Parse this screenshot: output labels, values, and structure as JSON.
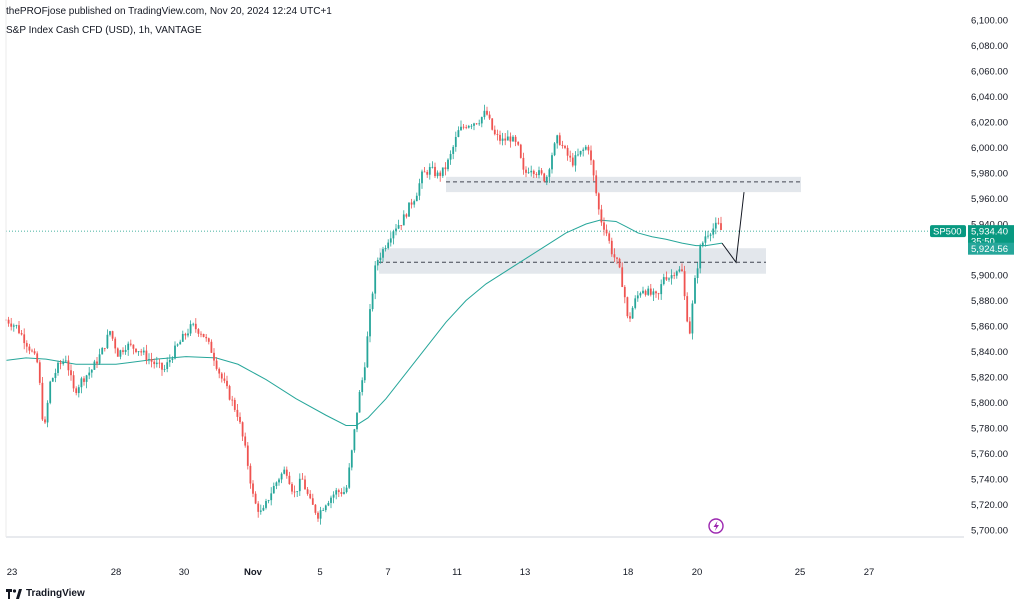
{
  "header": {
    "publisher": "thePROFjose published on TradingView.com, Nov 20, 2024 12:24 UTC+1",
    "symbol": "S&P Index Cash CFD (USD), 1h, VANTAGE"
  },
  "footer": {
    "brand": "TradingView"
  },
  "colors": {
    "up": "#26a69a",
    "down": "#ef5350",
    "ma": "#26a69a",
    "zone": "#e3e7ec",
    "last_price": "#089981",
    "grid": "#ebebeb"
  },
  "chart_data": {
    "type": "candlestick",
    "title": "S&P Index Cash CFD (USD), 1h, VANTAGE",
    "y_axis": {
      "min": 5695,
      "max": 6100,
      "step": 20,
      "ticks": [
        "6,100.00",
        "6,080.00",
        "6,060.00",
        "6,040.00",
        "6,020.00",
        "6,000.00",
        "5,980.00",
        "5,960.00",
        "5,940.00",
        "5,920.00",
        "5,900.00",
        "5,880.00",
        "5,860.00",
        "5,840.00",
        "5,820.00",
        "5,800.00",
        "5,780.00",
        "5,760.00",
        "5,740.00",
        "5,720.00",
        "5,700.00"
      ]
    },
    "x_axis": {
      "labels": [
        "23",
        "28",
        "30",
        "Nov",
        "5",
        "7",
        "11",
        "13",
        "18",
        "20",
        "25",
        "27"
      ],
      "bold": [
        "Nov"
      ]
    },
    "price_path": [
      [
        0,
        5865
      ],
      [
        10,
        5860
      ],
      [
        22,
        5845
      ],
      [
        32,
        5830
      ],
      [
        38,
        5775
      ],
      [
        44,
        5815
      ],
      [
        52,
        5828
      ],
      [
        60,
        5835
      ],
      [
        68,
        5808
      ],
      [
        76,
        5818
      ],
      [
        86,
        5826
      ],
      [
        96,
        5840
      ],
      [
        104,
        5856
      ],
      [
        112,
        5838
      ],
      [
        120,
        5845
      ],
      [
        132,
        5842
      ],
      [
        146,
        5832
      ],
      [
        158,
        5825
      ],
      [
        168,
        5840
      ],
      [
        178,
        5852
      ],
      [
        186,
        5860
      ],
      [
        196,
        5855
      ],
      [
        206,
        5840
      ],
      [
        214,
        5822
      ],
      [
        222,
        5808
      ],
      [
        232,
        5790
      ],
      [
        240,
        5760
      ],
      [
        248,
        5722
      ],
      [
        256,
        5712
      ],
      [
        264,
        5728
      ],
      [
        272,
        5740
      ],
      [
        280,
        5748
      ],
      [
        288,
        5728
      ],
      [
        296,
        5740
      ],
      [
        304,
        5722
      ],
      [
        312,
        5712
      ],
      [
        320,
        5722
      ],
      [
        330,
        5730
      ],
      [
        340,
        5730
      ],
      [
        346,
        5762
      ],
      [
        352,
        5800
      ],
      [
        358,
        5825
      ],
      [
        364,
        5870
      ],
      [
        370,
        5910
      ],
      [
        376,
        5918
      ],
      [
        382,
        5928
      ],
      [
        388,
        5937
      ],
      [
        396,
        5942
      ],
      [
        404,
        5955
      ],
      [
        410,
        5963
      ],
      [
        416,
        5978
      ],
      [
        424,
        5983
      ],
      [
        432,
        5978
      ],
      [
        438,
        5982
      ],
      [
        444,
        5992
      ],
      [
        452,
        6012
      ],
      [
        460,
        6018
      ],
      [
        468,
        6020
      ],
      [
        474,
        6022
      ],
      [
        480,
        6028
      ],
      [
        488,
        6010
      ],
      [
        496,
        6005
      ],
      [
        504,
        6008
      ],
      [
        512,
        6000
      ],
      [
        518,
        5978
      ],
      [
        524,
        5985
      ],
      [
        532,
        5980
      ],
      [
        540,
        5975
      ],
      [
        546,
        5995
      ],
      [
        552,
        6008
      ],
      [
        558,
        5998
      ],
      [
        566,
        5988
      ],
      [
        574,
        5995
      ],
      [
        582,
        6002
      ],
      [
        588,
        5975
      ],
      [
        594,
        5945
      ],
      [
        600,
        5935
      ],
      [
        606,
        5918
      ],
      [
        612,
        5908
      ],
      [
        618,
        5888
      ],
      [
        622,
        5862
      ],
      [
        628,
        5878
      ],
      [
        636,
        5890
      ],
      [
        644,
        5885
      ],
      [
        652,
        5882
      ],
      [
        658,
        5900
      ],
      [
        664,
        5898
      ],
      [
        670,
        5905
      ],
      [
        676,
        5902
      ],
      [
        680,
        5872
      ],
      [
        684,
        5855
      ],
      [
        688,
        5890
      ],
      [
        694,
        5920
      ],
      [
        700,
        5932
      ],
      [
        706,
        5936
      ],
      [
        712,
        5939
      ],
      [
        716,
        5934
      ]
    ],
    "moving_average": [
      [
        0,
        5833
      ],
      [
        20,
        5835
      ],
      [
        40,
        5834
      ],
      [
        70,
        5830
      ],
      [
        110,
        5830
      ],
      [
        150,
        5834
      ],
      [
        180,
        5836
      ],
      [
        210,
        5835
      ],
      [
        232,
        5830
      ],
      [
        260,
        5818
      ],
      [
        290,
        5803
      ],
      [
        320,
        5790
      ],
      [
        340,
        5782
      ],
      [
        350,
        5782
      ],
      [
        362,
        5788
      ],
      [
        380,
        5803
      ],
      [
        400,
        5823
      ],
      [
        420,
        5843
      ],
      [
        440,
        5863
      ],
      [
        460,
        5880
      ],
      [
        480,
        5893
      ],
      [
        500,
        5903
      ],
      [
        520,
        5913
      ],
      [
        540,
        5923
      ],
      [
        560,
        5933
      ],
      [
        580,
        5940
      ],
      [
        594,
        5943
      ],
      [
        610,
        5942
      ],
      [
        620,
        5938
      ],
      [
        632,
        5933
      ],
      [
        646,
        5930
      ],
      [
        660,
        5928
      ],
      [
        676,
        5925
      ],
      [
        690,
        5923
      ],
      [
        700,
        5923
      ],
      [
        716,
        5925
      ]
    ],
    "zones": [
      {
        "x0": 440,
        "x1": 795,
        "y_low": 5965,
        "y_high": 5977,
        "dashed_level": 5973
      },
      {
        "x0": 373,
        "x1": 760,
        "y_low": 5901,
        "y_high": 5921,
        "dashed_level": 5910
      }
    ],
    "projection": [
      [
        716,
        5925
      ],
      [
        730,
        5910
      ],
      [
        738,
        5965
      ]
    ],
    "last_price_line": 5934.4,
    "price_tag": {
      "label": "SP500",
      "price": "5,934.40",
      "countdown": "35:50"
    },
    "ma_tag": "5,924.56"
  }
}
